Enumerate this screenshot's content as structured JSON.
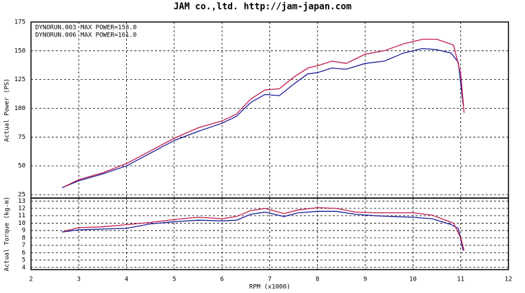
{
  "title": "JAM co.,ltd.  http://jam-japan.com",
  "chart_data": [
    {
      "type": "line",
      "ylabel": "Actual Power (PS)",
      "xlim": [
        2,
        12
      ],
      "xticks": [
        2,
        3,
        4,
        5,
        6,
        7,
        8,
        9,
        10,
        11,
        12
      ],
      "ylim": [
        22,
        175
      ],
      "yticks": [
        25,
        50,
        75,
        100,
        125,
        150,
        175
      ],
      "grid": true,
      "legend": "upper left",
      "series": [
        {
          "name": "DYNORUN.003",
          "max_label": "MAX POWER=153.0",
          "color": "#1a1a9a",
          "x": [
            2.65,
            3,
            3.5,
            4,
            4.5,
            5,
            5.5,
            6,
            6.3,
            6.6,
            6.9,
            7.2,
            7.5,
            7.8,
            8,
            8.3,
            8.6,
            9,
            9.4,
            9.8,
            10.2,
            10.5,
            10.8,
            10.95,
            11.05
          ],
          "values": [
            31,
            37,
            43,
            50,
            61,
            72,
            80,
            87,
            93,
            105,
            112,
            111,
            121,
            130,
            131,
            135,
            134,
            139,
            141,
            148,
            152,
            151,
            148,
            140,
            103
          ]
        },
        {
          "name": "DYNORUN.006",
          "max_label": "MAX POWER=161.0",
          "color": "#c0184a",
          "x": [
            2.7,
            3,
            3.5,
            4,
            4.5,
            5,
            5.5,
            6,
            6.3,
            6.6,
            6.9,
            7.2,
            7.5,
            7.8,
            8,
            8.3,
            8.6,
            9,
            9.4,
            9.8,
            10.2,
            10.5,
            10.85,
            11,
            11.07
          ],
          "values": [
            32,
            38,
            44,
            52,
            63,
            74,
            83,
            89,
            95,
            108,
            116,
            117,
            127,
            135,
            137,
            141,
            139,
            147,
            150,
            156,
            160,
            160,
            155,
            130,
            96
          ]
        }
      ]
    },
    {
      "type": "line",
      "ylabel": "Actual Torque (kg-m)",
      "xlabel": "RPM (x1000)",
      "xlim": [
        2,
        12
      ],
      "xticks": [
        2,
        3,
        4,
        5,
        6,
        7,
        8,
        9,
        10,
        11,
        12
      ],
      "ylim": [
        3.7,
        13.4
      ],
      "yticks": [
        4,
        5,
        6,
        7,
        8,
        9,
        10,
        11,
        12,
        13
      ],
      "grid": true,
      "series": [
        {
          "color": "#1a1a9a",
          "x": [
            2.65,
            3,
            3.5,
            4,
            4.5,
            5,
            5.5,
            6,
            6.3,
            6.6,
            6.9,
            7.3,
            7.6,
            8,
            8.4,
            8.8,
            9.2,
            9.6,
            10,
            10.4,
            10.8,
            10.95,
            11.05
          ],
          "values": [
            8.8,
            9.1,
            9.2,
            9.3,
            9.9,
            10.2,
            10.4,
            10.3,
            10.4,
            11.2,
            11.5,
            10.9,
            11.4,
            11.6,
            11.6,
            11.2,
            11.0,
            10.9,
            10.8,
            10.6,
            9.8,
            9.3,
            6.3
          ]
        },
        {
          "color": "#c0184a",
          "x": [
            2.7,
            3,
            3.5,
            4,
            4.5,
            5,
            5.5,
            6,
            6.3,
            6.6,
            6.9,
            7.3,
            7.6,
            8,
            8.4,
            8.8,
            9.2,
            9.6,
            10,
            10.4,
            10.85,
            11,
            11.07
          ],
          "values": [
            8.9,
            9.4,
            9.5,
            9.8,
            10.1,
            10.5,
            10.8,
            10.6,
            10.9,
            11.7,
            12.0,
            11.3,
            11.8,
            12.1,
            12.0,
            11.5,
            11.4,
            11.4,
            11.4,
            11.1,
            10.0,
            8.0,
            6.3
          ]
        }
      ]
    }
  ]
}
